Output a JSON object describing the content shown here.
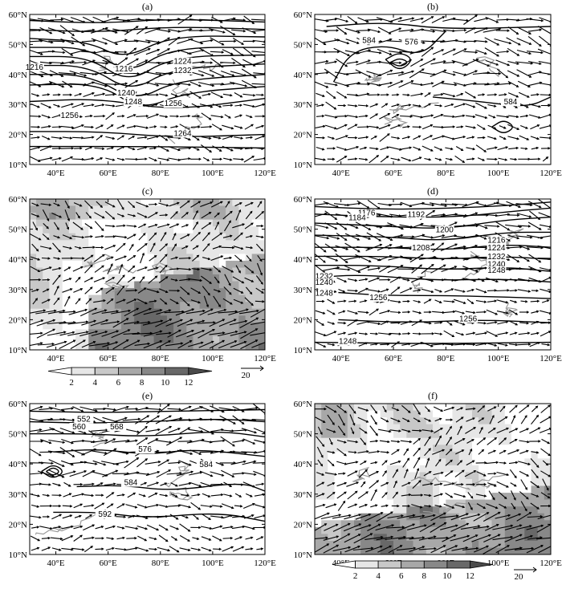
{
  "panels": [
    {
      "label": "(a)",
      "kind": "contour",
      "contour_labels": [
        "1216",
        "1224",
        "1232",
        "1240",
        "1248",
        "1256",
        "1256",
        "1264",
        "1216"
      ]
    },
    {
      "label": "(b)",
      "kind": "contour",
      "contour_labels": [
        "584",
        "576",
        "584"
      ]
    },
    {
      "label": "(c)",
      "kind": "shaded",
      "contour_labels": []
    },
    {
      "label": "(d)",
      "kind": "contour",
      "contour_labels": [
        "1176",
        "1184",
        "1192",
        "1200",
        "1208",
        "1216",
        "1224",
        "1232",
        "1240",
        "1248",
        "1232",
        "1240",
        "1248",
        "1256",
        "1256",
        "1248"
      ]
    },
    {
      "label": "(e)",
      "kind": "contour",
      "contour_labels": [
        "552",
        "560",
        "568",
        "576",
        "584",
        "584",
        "592"
      ]
    },
    {
      "label": "(f)",
      "kind": "shaded",
      "contour_labels": []
    }
  ],
  "x_ticks": [
    "40°E",
    "60°E",
    "80°E",
    "100°E",
    "120°E"
  ],
  "y_ticks": [
    "10°N",
    "20°N",
    "30°N",
    "40°N",
    "50°N",
    "60°N"
  ],
  "colorbar": {
    "ticks": [
      "2",
      "4",
      "6",
      "8",
      "10",
      "12"
    ],
    "reference_vector": "20"
  },
  "chart_data": {
    "type": "heatmap",
    "x_axis": {
      "min": 30,
      "max": 120,
      "ticks": [
        40,
        60,
        80,
        100,
        120
      ]
    },
    "y_axis": {
      "min": 10,
      "max": 60,
      "ticks": [
        10,
        20,
        30,
        40,
        50,
        60
      ]
    },
    "colorbar_levels": [
      2,
      4,
      6,
      8,
      10,
      12
    ],
    "grays": [
      "#ffffff",
      "#e6e6e6",
      "#c8c8c8",
      "#a8a8a8",
      "#888888",
      "#686868",
      "#4a4a4a"
    ],
    "panels": [
      {
        "label": "(a)",
        "type": "contour+vector"
      },
      {
        "label": "(b)",
        "type": "contour+vector"
      },
      {
        "label": "(c)",
        "type": "shaded+vector"
      },
      {
        "label": "(d)",
        "type": "contour+vector"
      },
      {
        "label": "(e)",
        "type": "contour+vector"
      },
      {
        "label": "(f)",
        "type": "shaded+vector"
      }
    ]
  }
}
